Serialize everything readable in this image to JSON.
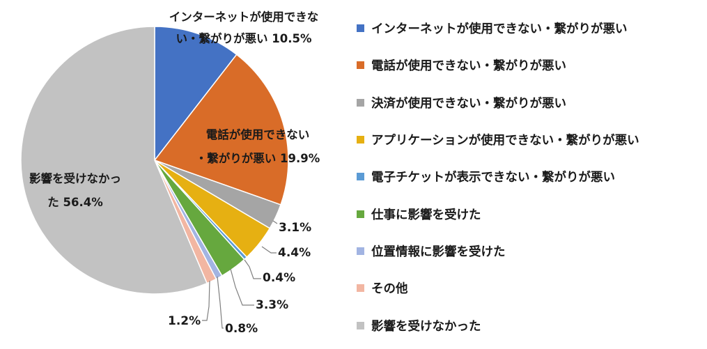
{
  "chart_data": {
    "type": "pie",
    "categories": [
      "インターネットが使用できない・繋がりが悪い",
      "電話が使用できない・繋がりが悪い",
      "決済が使用できない・繋がりが悪い",
      "アプリケーションが使用できない・繋がりが悪い",
      "電子チケットが表示できない・繋がりが悪い",
      "仕事に影響を受けた",
      "位置情報に影響を受けた",
      "その他",
      "影響を受けなかった"
    ],
    "values": [
      10.5,
      19.9,
      3.1,
      4.4,
      0.4,
      3.3,
      0.8,
      1.2,
      56.4
    ],
    "colors": [
      "#4472C4",
      "#D96C28",
      "#A5A5A5",
      "#E6B012",
      "#5B9BD5",
      "#66A83E",
      "#A2B4E2",
      "#F2B6A2",
      "#C2C2C2"
    ],
    "data_labels": {
      "0": [
        "インターネットが使用できな",
        "い・繋がりが悪い 10.5%"
      ],
      "1": [
        "電話が使用できない",
        "・繋がりが悪い 19.9%"
      ],
      "2": [
        "3.1%"
      ],
      "3": [
        "4.4%"
      ],
      "4": [
        "0.4%"
      ],
      "5": [
        "3.3%"
      ],
      "6": [
        "0.8%"
      ],
      "7": [
        "1.2%"
      ],
      "8": [
        "影響を受けなかっ",
        "た 56.4%"
      ]
    },
    "legend_position": "right"
  }
}
